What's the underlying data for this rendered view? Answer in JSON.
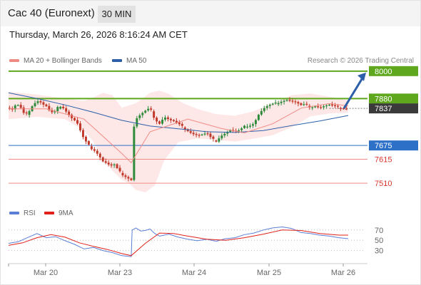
{
  "header": {
    "title": "Cac 40 (Euronext)",
    "timeframe": "30 MIN",
    "datetime": "Thursday, March 26, 2026 8:16:24 AM CET"
  },
  "legend": {
    "ma20": {
      "label": "MA 20 + Bollinger Bands",
      "color": "#f08a85"
    },
    "ma50": {
      "label": "MA 50",
      "color": "#2d5fa8"
    },
    "credit": "Research © 2026 Trading Central"
  },
  "rsi_legend": {
    "rsi": {
      "label": "RSI",
      "color": "#5b7fd6"
    },
    "ma9": {
      "label": "9MA",
      "color": "#e0201a"
    }
  },
  "colors": {
    "up": "#2e8b3c",
    "down": "#c0392b",
    "resistance": "#5fa81e",
    "support": "#2d70c8",
    "target": "#f08a85",
    "arrow": "#2d5fa8"
  },
  "chart_data": [
    {
      "type": "candlestick",
      "title": "Cac 40 (Euronext)",
      "x_ticks": [
        "Mar 20",
        "Mar 23",
        "Mar 24",
        "Mar 25",
        "Mar 26"
      ],
      "ylim": [
        7470,
        8015
      ],
      "current_price": 7837,
      "levels": [
        {
          "value": 8000,
          "label": "8000",
          "kind": "resistance"
        },
        {
          "value": 7880,
          "label": "7880",
          "kind": "resistance"
        },
        {
          "value": 7837,
          "label": "7837",
          "kind": "current"
        },
        {
          "value": 7675,
          "label": "7675",
          "kind": "support"
        },
        {
          "value": 7615,
          "label": "7615",
          "kind": "target"
        },
        {
          "value": 7510,
          "label": "7510",
          "kind": "target"
        }
      ],
      "projection": {
        "from": 7837,
        "to": 8000
      },
      "close_path": [
        [
          0,
          7840
        ],
        [
          4,
          7832
        ],
        [
          8,
          7855
        ],
        [
          12,
          7845
        ],
        [
          16,
          7815
        ],
        [
          20,
          7812
        ],
        [
          24,
          7845
        ],
        [
          28,
          7862
        ],
        [
          32,
          7872
        ],
        [
          36,
          7856
        ],
        [
          40,
          7846
        ],
        [
          44,
          7822
        ],
        [
          48,
          7815
        ],
        [
          52,
          7840
        ],
        [
          56,
          7850
        ],
        [
          60,
          7830
        ],
        [
          64,
          7810
        ],
        [
          68,
          7790
        ],
        [
          72,
          7780
        ],
        [
          76,
          7740
        ],
        [
          80,
          7700
        ],
        [
          84,
          7680
        ],
        [
          88,
          7662
        ],
        [
          92,
          7652
        ],
        [
          96,
          7630
        ],
        [
          100,
          7606
        ],
        [
          104,
          7597
        ],
        [
          108,
          7585
        ],
        [
          112,
          7590
        ],
        [
          116,
          7568
        ],
        [
          120,
          7550
        ],
        [
          124,
          7540
        ],
        [
          128,
          7530
        ],
        [
          130,
          7525
        ],
        [
          131,
          7650
        ],
        [
          132,
          7742
        ],
        [
          135,
          7790
        ],
        [
          140,
          7810
        ],
        [
          145,
          7825
        ],
        [
          150,
          7838
        ],
        [
          155,
          7790
        ],
        [
          160,
          7772
        ],
        [
          165,
          7800
        ],
        [
          170,
          7788
        ],
        [
          175,
          7780
        ],
        [
          180,
          7768
        ],
        [
          185,
          7755
        ],
        [
          190,
          7740
        ],
        [
          195,
          7727
        ],
        [
          200,
          7720
        ],
        [
          205,
          7722
        ],
        [
          210,
          7728
        ],
        [
          215,
          7705
        ],
        [
          220,
          7695
        ],
        [
          225,
          7718
        ],
        [
          230,
          7730
        ],
        [
          235,
          7742
        ],
        [
          240,
          7735
        ],
        [
          245,
          7740
        ],
        [
          250,
          7758
        ],
        [
          255,
          7762
        ],
        [
          260,
          7772
        ],
        [
          265,
          7810
        ],
        [
          270,
          7835
        ],
        [
          275,
          7848
        ],
        [
          280,
          7855
        ],
        [
          285,
          7862
        ],
        [
          290,
          7870
        ],
        [
          295,
          7875
        ],
        [
          300,
          7868
        ],
        [
          305,
          7862
        ],
        [
          310,
          7850
        ],
        [
          315,
          7855
        ],
        [
          320,
          7842
        ],
        [
          325,
          7848
        ],
        [
          330,
          7840
        ],
        [
          335,
          7848
        ],
        [
          340,
          7852
        ],
        [
          345,
          7845
        ],
        [
          350,
          7842
        ],
        [
          355,
          7838
        ],
        [
          360,
          7837
        ]
      ],
      "ma20_path": [
        [
          0,
          7835
        ],
        [
          40,
          7835
        ],
        [
          80,
          7790
        ],
        [
          120,
          7640
        ],
        [
          130,
          7600
        ],
        [
          150,
          7735
        ],
        [
          190,
          7790
        ],
        [
          225,
          7750
        ],
        [
          250,
          7730
        ],
        [
          280,
          7770
        ],
        [
          310,
          7838
        ],
        [
          340,
          7858
        ],
        [
          360,
          7848
        ]
      ],
      "ma50_path": [
        [
          0,
          7905
        ],
        [
          30,
          7880
        ],
        [
          60,
          7852
        ],
        [
          90,
          7820
        ],
        [
          120,
          7785
        ],
        [
          150,
          7760
        ],
        [
          180,
          7748
        ],
        [
          210,
          7735
        ],
        [
          240,
          7732
        ],
        [
          270,
          7740
        ],
        [
          300,
          7762
        ],
        [
          330,
          7782
        ],
        [
          360,
          7806
        ]
      ],
      "bb_upper_path": [
        [
          0,
          7910
        ],
        [
          30,
          7898
        ],
        [
          60,
          7880
        ],
        [
          80,
          7870
        ],
        [
          90,
          7885
        ],
        [
          100,
          7905
        ],
        [
          110,
          7895
        ],
        [
          120,
          7840
        ],
        [
          135,
          7860
        ],
        [
          150,
          7905
        ],
        [
          160,
          7915
        ],
        [
          170,
          7900
        ],
        [
          185,
          7860
        ],
        [
          200,
          7835
        ],
        [
          220,
          7812
        ],
        [
          240,
          7805
        ],
        [
          260,
          7825
        ],
        [
          280,
          7860
        ],
        [
          300,
          7895
        ],
        [
          320,
          7902
        ],
        [
          340,
          7888
        ],
        [
          360,
          7872
        ]
      ],
      "bb_lower_path": [
        [
          0,
          7790
        ],
        [
          30,
          7800
        ],
        [
          60,
          7790
        ],
        [
          80,
          7740
        ],
        [
          90,
          7690
        ],
        [
          100,
          7620
        ],
        [
          110,
          7565
        ],
        [
          120,
          7525
        ],
        [
          128,
          7510
        ],
        [
          135,
          7480
        ],
        [
          145,
          7470
        ],
        [
          155,
          7500
        ],
        [
          165,
          7610
        ],
        [
          180,
          7690
        ],
        [
          200,
          7705
        ],
        [
          220,
          7700
        ],
        [
          240,
          7692
        ],
        [
          260,
          7705
        ],
        [
          280,
          7720
        ],
        [
          300,
          7755
        ],
        [
          320,
          7802
        ],
        [
          340,
          7815
        ],
        [
          360,
          7818
        ]
      ]
    },
    {
      "type": "line",
      "title": "",
      "ylim": [
        10,
        85
      ],
      "y_ticks": [
        70,
        50,
        30
      ],
      "series": [
        {
          "name": "RSI",
          "values": [
            [
              0,
              44
            ],
            [
              10,
              47
            ],
            [
              20,
              55
            ],
            [
              30,
              63
            ],
            [
              40,
              55
            ],
            [
              50,
              57
            ],
            [
              60,
              49
            ],
            [
              70,
              42
            ],
            [
              80,
              33
            ],
            [
              90,
              36
            ],
            [
              100,
              30
            ],
            [
              110,
              26
            ],
            [
              120,
              20
            ],
            [
              130,
              18
            ],
            [
              131,
              70
            ],
            [
              135,
              74
            ],
            [
              140,
              68
            ],
            [
              145,
              69
            ],
            [
              150,
              72
            ],
            [
              155,
              63
            ],
            [
              160,
              58
            ],
            [
              170,
              62
            ],
            [
              180,
              56
            ],
            [
              190,
              52
            ],
            [
              200,
              49
            ],
            [
              210,
              52
            ],
            [
              220,
              48
            ],
            [
              230,
              53
            ],
            [
              240,
              55
            ],
            [
              250,
              61
            ],
            [
              260,
              64
            ],
            [
              270,
              70
            ],
            [
              280,
              74
            ],
            [
              290,
              76
            ],
            [
              300,
              73
            ],
            [
              310,
              65
            ],
            [
              320,
              63
            ],
            [
              330,
              60
            ],
            [
              340,
              58
            ],
            [
              350,
              55
            ],
            [
              360,
              53
            ]
          ]
        },
        {
          "name": "9MA",
          "values": [
            [
              0,
              40
            ],
            [
              15,
              45
            ],
            [
              30,
              55
            ],
            [
              45,
              61
            ],
            [
              60,
              56
            ],
            [
              75,
              45
            ],
            [
              90,
              38
            ],
            [
              105,
              32
            ],
            [
              120,
              24
            ],
            [
              130,
              20
            ],
            [
              145,
              44
            ],
            [
              160,
              64
            ],
            [
              175,
              63
            ],
            [
              190,
              58
            ],
            [
              210,
              52
            ],
            [
              230,
              50
            ],
            [
              250,
              55
            ],
            [
              270,
              62
            ],
            [
              290,
              70
            ],
            [
              310,
              69
            ],
            [
              330,
              63
            ],
            [
              350,
              60
            ],
            [
              360,
              60
            ]
          ]
        }
      ]
    }
  ]
}
